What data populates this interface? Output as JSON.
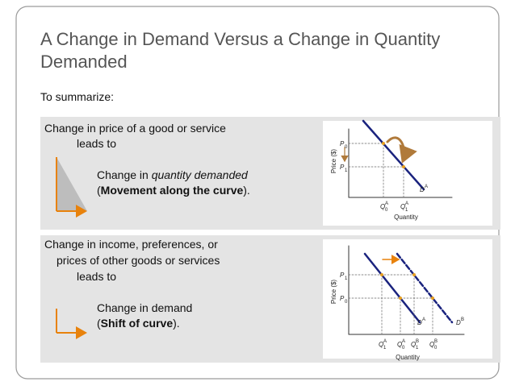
{
  "title": [
    "A Change in Demand Versus a Change in Quantity",
    "Demanded"
  ],
  "intro": "To summarize:",
  "box_1": {
    "lines": [
      "Change in price of a good or service",
      "leads to"
    ],
    "result": {
      "prefix": "Change in ",
      "emphasis": "quantity demanded"
    },
    "note": {
      "open": "(",
      "bold": "Movement along the curve",
      "close": ")."
    },
    "graph": {
      "y_axis_label": "Price ($)",
      "x_axis_label": "Quantity",
      "price_labels": [
        {
          "letter": "P",
          "sub": "0"
        },
        {
          "letter": "P",
          "sub": "1"
        }
      ],
      "quantity_labels": [
        {
          "letter": "Q",
          "sub": "0",
          "sup": "A"
        },
        {
          "letter": "Q",
          "sub": "1",
          "sup": "A"
        }
      ],
      "curve_labels": [
        {
          "letter": "D",
          "sup": "A"
        }
      ]
    }
  },
  "box_2": {
    "lines": [
      "Change in income, preferences, or",
      "prices of other goods or services",
      "leads to"
    ],
    "result": {
      "prefix": "Change in demand"
    },
    "note": {
      "open": "(",
      "bold": "Shift of curve",
      "close": ")."
    },
    "graph": {
      "y_axis_label": "Price ($)",
      "x_axis_label": "Quantity",
      "price_labels": [
        {
          "letter": "P",
          "sub": "1"
        },
        {
          "letter": "P",
          "sub": "0"
        }
      ],
      "quantity_labels": [
        {
          "letter": "Q",
          "sub": "1",
          "sup": "A"
        },
        {
          "letter": "Q",
          "sub": "0",
          "sup": "A"
        },
        {
          "letter": "Q",
          "sub": "1",
          "sup": "B"
        },
        {
          "letter": "Q",
          "sub": "0",
          "sup": "B"
        }
      ],
      "curve_labels": [
        {
          "letter": "D",
          "sup": "A"
        },
        {
          "letter": "D",
          "sup": "B"
        }
      ]
    }
  }
}
